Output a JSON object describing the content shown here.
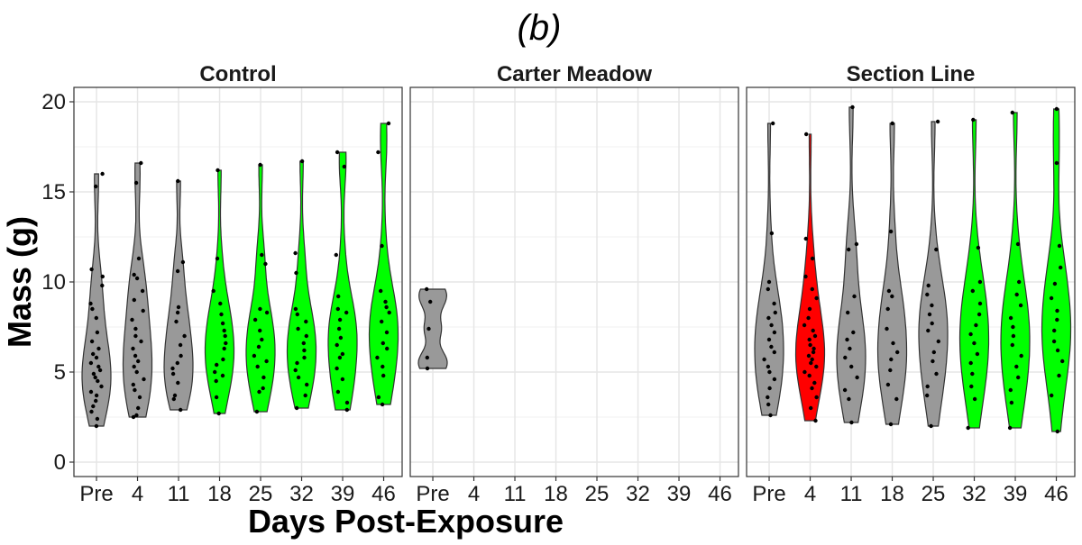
{
  "chart_data": {
    "type": "violin",
    "title": "(b)",
    "xlabel": "Days Post-Exposure",
    "ylabel": "Mass (g)",
    "ylim": [
      -0.8,
      20.8
    ],
    "yticks": [
      0,
      5,
      10,
      15,
      20
    ],
    "categories": [
      "Pre",
      "4",
      "11",
      "18",
      "25",
      "32",
      "39",
      "46"
    ],
    "grid": true,
    "colors": {
      "baseline": "#999999",
      "no_effect": "#00ff00",
      "effect": "#ff0000"
    },
    "panels": [
      {
        "name": "Control",
        "violins": [
          {
            "category": "Pre",
            "fill": "#999999",
            "min": 2.0,
            "max": 16.0,
            "points": [
              2.0,
              2.4,
              2.8,
              3.1,
              3.4,
              3.7,
              3.9,
              4.2,
              4.5,
              4.7,
              4.9,
              5.1,
              5.3,
              5.5,
              5.8,
              6.0,
              6.3,
              6.7,
              7.2,
              8.0,
              8.5,
              8.8,
              9.8,
              10.3,
              10.7,
              15.3,
              16.0
            ]
          },
          {
            "category": "4",
            "fill": "#999999",
            "min": 2.5,
            "max": 16.6,
            "points": [
              2.5,
              2.6,
              3.0,
              3.6,
              4.0,
              4.3,
              4.6,
              5.0,
              5.3,
              5.6,
              5.9,
              6.3,
              6.7,
              7.0,
              7.4,
              7.9,
              8.4,
              9.0,
              9.5,
              10.2,
              10.4,
              11.3,
              15.5,
              16.6
            ]
          },
          {
            "category": "11",
            "fill": "#999999",
            "min": 2.9,
            "max": 15.6,
            "points": [
              2.9,
              3.5,
              3.7,
              4.4,
              4.9,
              5.2,
              5.5,
              5.9,
              6.5,
              7.0,
              7.8,
              8.3,
              8.6,
              10.6,
              11.1,
              15.6
            ]
          },
          {
            "category": "18",
            "fill": "#00ff00",
            "min": 2.7,
            "max": 16.2,
            "points": [
              2.7,
              3.6,
              4.5,
              4.8,
              5.0,
              5.4,
              5.7,
              6.3,
              6.6,
              7.0,
              7.3,
              7.7,
              8.2,
              8.8,
              9.5,
              11.3,
              16.2
            ]
          },
          {
            "category": "25",
            "fill": "#00ff00",
            "min": 2.8,
            "max": 16.5,
            "points": [
              2.8,
              3.9,
              4.1,
              4.7,
              5.3,
              5.6,
              5.9,
              6.4,
              6.8,
              7.3,
              7.9,
              8.3,
              8.5,
              11.0,
              11.5,
              16.5
            ]
          },
          {
            "category": "32",
            "fill": "#00ff00",
            "min": 3.0,
            "max": 16.7,
            "points": [
              3.0,
              3.7,
              4.3,
              4.7,
              5.1,
              5.5,
              5.8,
              6.2,
              6.6,
              7.0,
              7.4,
              7.8,
              8.2,
              8.5,
              10.5,
              11.6,
              16.7
            ]
          },
          {
            "category": "39",
            "fill": "#00ff00",
            "min": 2.9,
            "max": 17.2,
            "points": [
              2.9,
              3.3,
              3.9,
              4.6,
              5.2,
              5.8,
              6.0,
              6.5,
              6.9,
              7.4,
              7.9,
              8.3,
              8.5,
              9.2,
              11.5,
              16.4,
              17.2
            ]
          },
          {
            "category": "46",
            "fill": "#00ff00",
            "min": 3.2,
            "max": 18.8,
            "points": [
              3.2,
              3.6,
              4.8,
              5.3,
              5.8,
              6.3,
              6.6,
              7.2,
              7.8,
              8.3,
              8.6,
              8.9,
              9.5,
              12.0,
              17.2,
              18.8
            ]
          }
        ]
      },
      {
        "name": "Carter Meadow",
        "violins": [
          {
            "category": "Pre",
            "fill": "#999999",
            "min": 5.2,
            "max": 9.6,
            "points": [
              5.2,
              5.8,
              7.4,
              8.9,
              9.6
            ]
          }
        ]
      },
      {
        "name": "Section Line",
        "violins": [
          {
            "category": "Pre",
            "fill": "#999999",
            "min": 2.6,
            "max": 18.8,
            "points": [
              2.6,
              3.2,
              3.6,
              4.1,
              4.6,
              5.0,
              5.3,
              5.7,
              6.1,
              6.4,
              6.8,
              7.2,
              7.6,
              8.0,
              8.3,
              8.8,
              9.6,
              10.0,
              12.7,
              18.8
            ]
          },
          {
            "category": "4",
            "fill": "#ff0000",
            "min": 2.3,
            "max": 18.2,
            "points": [
              2.3,
              3.0,
              3.6,
              4.1,
              4.4,
              4.8,
              5.0,
              5.3,
              5.5,
              5.7,
              5.9,
              6.1,
              6.3,
              6.5,
              6.8,
              7.0,
              7.3,
              7.6,
              8.0,
              8.5,
              9.1,
              9.6,
              10.3,
              11.3,
              12.4,
              18.2
            ]
          },
          {
            "category": "11",
            "fill": "#999999",
            "min": 2.2,
            "max": 19.7,
            "points": [
              2.2,
              3.5,
              4.0,
              4.7,
              5.3,
              5.8,
              6.3,
              6.8,
              7.2,
              8.3,
              9.2,
              11.8,
              12.1,
              19.7
            ]
          },
          {
            "category": "18",
            "fill": "#999999",
            "min": 2.1,
            "max": 18.8,
            "points": [
              2.1,
              3.5,
              4.3,
              5.1,
              5.7,
              6.1,
              6.6,
              7.4,
              8.5,
              9.2,
              9.5,
              12.8,
              18.8
            ]
          },
          {
            "category": "25",
            "fill": "#999999",
            "min": 2.0,
            "max": 18.9,
            "points": [
              2.0,
              3.7,
              4.2,
              4.9,
              5.6,
              6.1,
              6.7,
              7.3,
              7.7,
              8.2,
              8.7,
              9.3,
              9.8,
              11.8,
              18.9
            ]
          },
          {
            "category": "32",
            "fill": "#00ff00",
            "min": 1.9,
            "max": 19.0,
            "points": [
              1.9,
              3.5,
              4.2,
              4.9,
              5.5,
              6.0,
              6.6,
              7.1,
              7.6,
              8.2,
              8.8,
              9.5,
              10.0,
              11.9,
              19.0
            ]
          },
          {
            "category": "39",
            "fill": "#00ff00",
            "min": 1.9,
            "max": 19.4,
            "points": [
              1.9,
              3.3,
              4.0,
              4.7,
              5.3,
              5.9,
              6.5,
              7.0,
              7.5,
              8.0,
              8.7,
              9.3,
              10.0,
              12.1,
              19.4
            ]
          },
          {
            "category": "46",
            "fill": "#00ff00",
            "min": 1.7,
            "max": 19.6,
            "points": [
              1.7,
              3.7,
              4.8,
              5.6,
              6.2,
              6.7,
              7.3,
              7.9,
              8.4,
              9.1,
              9.9,
              10.8,
              12.0,
              16.6,
              19.6
            ]
          }
        ]
      }
    ]
  }
}
